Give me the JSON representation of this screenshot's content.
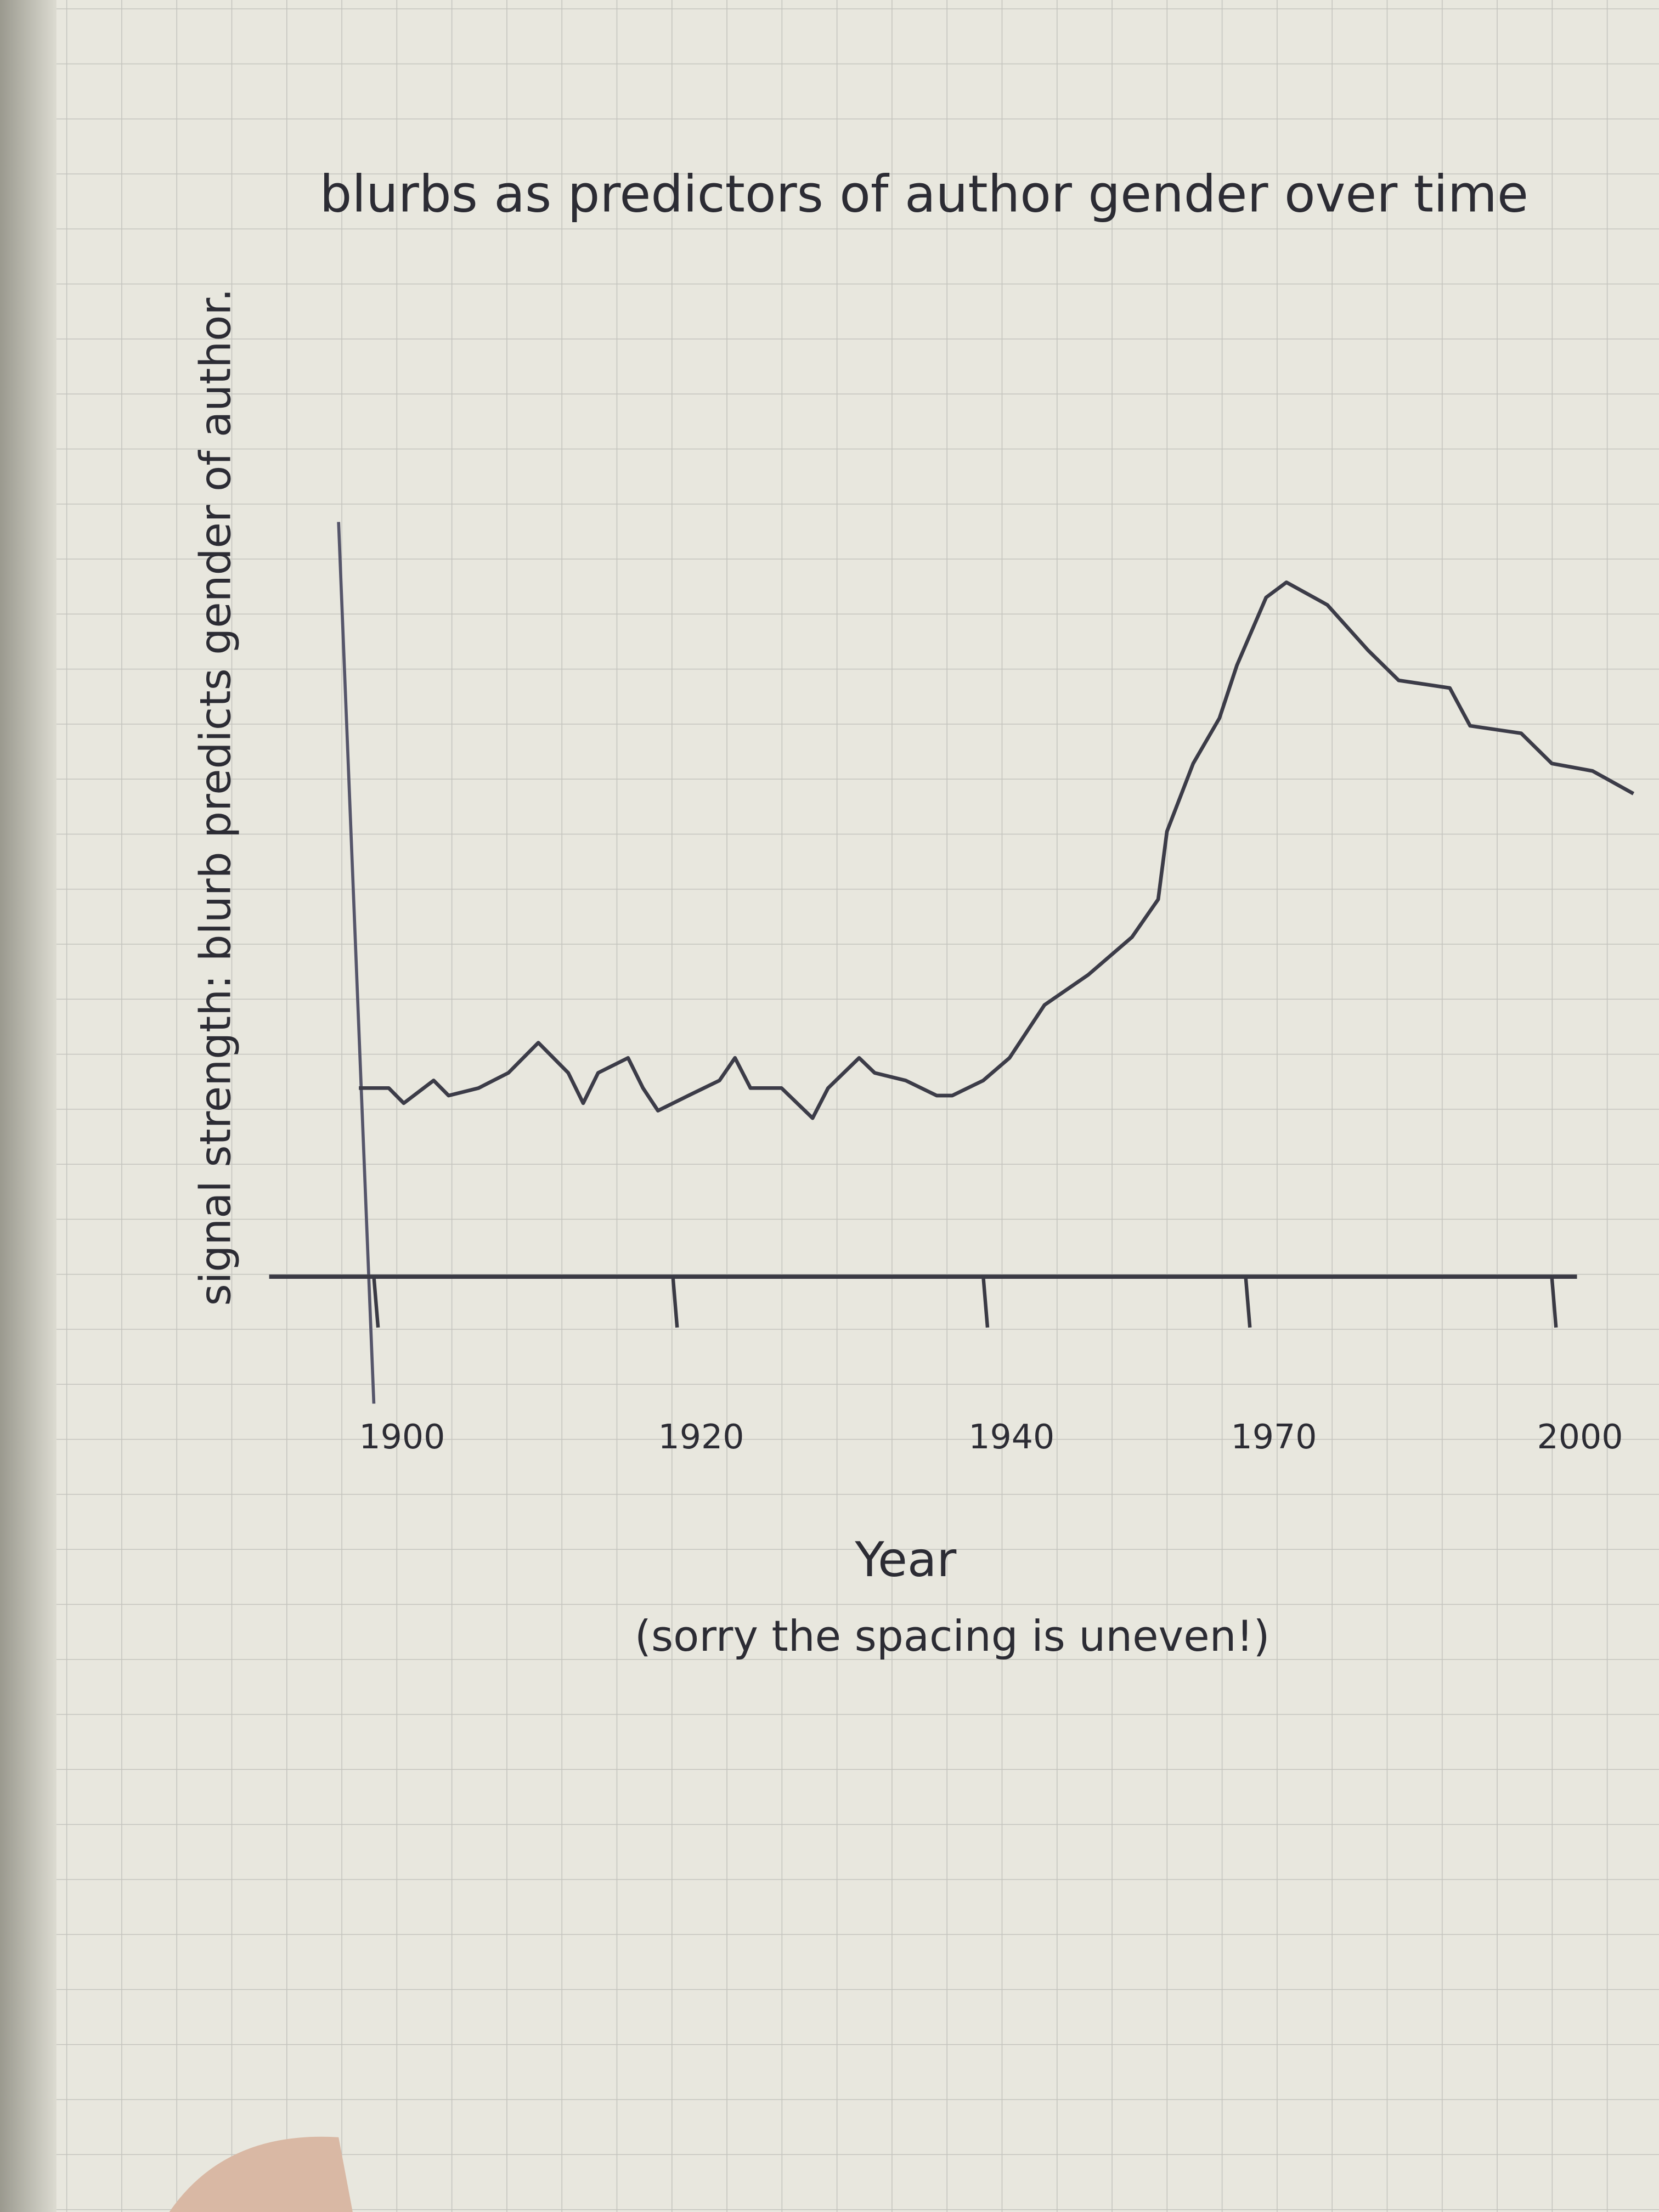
{
  "chart_data": {
    "type": "line",
    "title": "blurbs as predictors of author gender over time",
    "y_label": "signal strength: blurb predicts gender of author.",
    "x_label": "Year",
    "annotation": "(sorry the spacing is uneven!)",
    "x": [
      1899,
      1901,
      1902,
      1904,
      1905,
      1907,
      1909,
      1911,
      1913,
      1914,
      1915,
      1917,
      1918,
      1919,
      1921,
      1923,
      1924,
      1925,
      1927,
      1929,
      1930,
      1932,
      1933,
      1935,
      1937,
      1938,
      1940,
      1943,
      1947,
      1952,
      1957,
      1960,
      1961,
      1964,
      1967,
      1969,
      1972,
      1974,
      1978,
      1982,
      1985,
      1990,
      1992,
      1997,
      2000,
      2004,
      2008
    ],
    "values": [
      25,
      25,
      23,
      26,
      24,
      25,
      27,
      31,
      27,
      23,
      27,
      29,
      25,
      22,
      24,
      26,
      29,
      25,
      25,
      21,
      25,
      29,
      27,
      26,
      24,
      24,
      26,
      29,
      36,
      40,
      45,
      50,
      59,
      68,
      74,
      81,
      90,
      92,
      89,
      83,
      79,
      78,
      73,
      72,
      68,
      67,
      64
    ],
    "color": "#3c3c48",
    "xlim": [
      1893,
      2008
    ],
    "xticks": [
      1900,
      1920,
      1940,
      1970,
      2000
    ],
    "ylim": [
      0,
      100
    ],
    "grid": false
  }
}
